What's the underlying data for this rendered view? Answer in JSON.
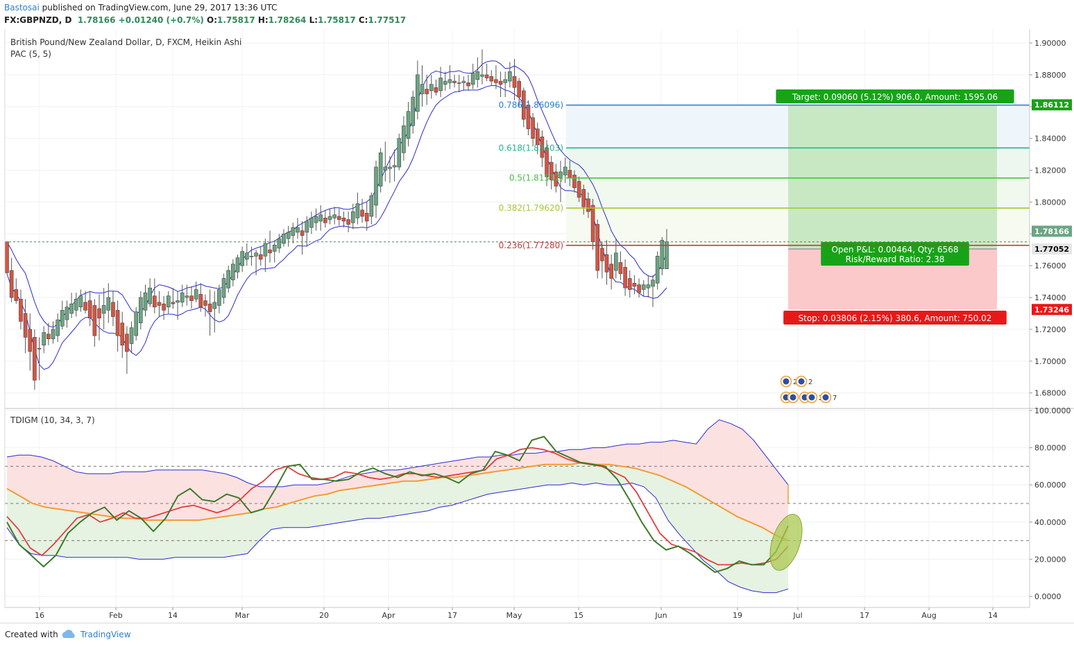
{
  "header": {
    "author": "Bastosai",
    "published_text": "published on TradingView.com, June 29, 2017 13:36 UTC",
    "symbol": "FX:GBPNZD, D",
    "last": "1.78166",
    "change": "+0.01240 (+0.7%)",
    "o_label": "O:",
    "o_value": "1.75817",
    "h_label": "H:",
    "h_value": "1.78264",
    "l_label": "L:",
    "l_value": "1.75817",
    "c_label": "C:",
    "c_value": "1.77517"
  },
  "footer": {
    "created_with": "Created with",
    "brand": "TradingView"
  },
  "colors": {
    "up": "#6ba583",
    "down": "#d75442",
    "band": "#2b2bd4",
    "fib_blue": "#2b7fd4",
    "fib_618": "#20b888",
    "fib_50": "#44c040",
    "fib_382": "#a4c832",
    "fib_236": "#c63c3c"
  },
  "chart_data": {
    "type": "candlestick",
    "title": "British Pound/New Zealand Dollar, D, FXCM, Heikin Ashi",
    "indicator_label": "PAC (5, 5)",
    "y_ticks": [
      "1.90000",
      "1.88000",
      "1.86000",
      "1.84000",
      "1.82000",
      "1.80000",
      "1.78000",
      "1.76000",
      "1.74000",
      "1.72000",
      "1.70000",
      "1.68000"
    ],
    "x_ticks": [
      "16",
      "Feb",
      "14",
      "Mar",
      "20",
      "Apr",
      "17",
      "May",
      "15",
      "Jun",
      "19",
      "Jul",
      "17",
      "Aug",
      "14"
    ],
    "price_tags": {
      "target": "1.86112",
      "current": "1.78166",
      "entry": "1.77052",
      "stop": "1.73246"
    },
    "fib_levels": [
      {
        "label": "0.786(1.86096)",
        "value": 1.86096
      },
      {
        "label": "0.618(1.83403)",
        "value": 1.83403
      },
      {
        "label": "0.5(1.81512)",
        "value": 1.81512
      },
      {
        "label": "0.382(1.79620)",
        "value": 1.7962
      },
      {
        "label": "0.236(1.77280)",
        "value": 1.7728
      }
    ],
    "position": {
      "target_label": "Target: 0.09060 (5.12%) 906.0, Amount: 1595.06",
      "stop_label": "Stop: 0.03806 (2.15%) 380.6, Amount: 750.02",
      "pnl_label": "Open P&L: 0.00464, Qty: 6568",
      "rr_label": "Risk/Reward Ratio: 2.38",
      "entry": 1.77052,
      "target": 1.86112,
      "stop": 1.73246
    },
    "event_counts": [
      "2",
      "2",
      "4",
      "2",
      "7"
    ],
    "candles": [
      [
        1.775,
        1.775,
        1.755,
        1.7555
      ],
      [
        1.757,
        1.765,
        1.737,
        1.74
      ],
      [
        1.745,
        1.752,
        1.736,
        1.738
      ],
      [
        1.739,
        1.745,
        1.72,
        1.725
      ],
      [
        1.73,
        1.739,
        1.705,
        1.715
      ],
      [
        1.72,
        1.73,
        1.694,
        1.706
      ],
      [
        1.715,
        1.72,
        1.682,
        1.688
      ],
      [
        1.708,
        1.715,
        1.688,
        1.708
      ],
      [
        1.71,
        1.722,
        1.705,
        1.718
      ],
      [
        1.717,
        1.724,
        1.71,
        1.714
      ],
      [
        1.714,
        1.725,
        1.711,
        1.72
      ],
      [
        1.716,
        1.73,
        1.712,
        1.726
      ],
      [
        1.722,
        1.738,
        1.72,
        1.732
      ],
      [
        1.726,
        1.738,
        1.721,
        1.734
      ],
      [
        1.73,
        1.743,
        1.727,
        1.736
      ],
      [
        1.732,
        1.743,
        1.728,
        1.739
      ],
      [
        1.734,
        1.745,
        1.731,
        1.741
      ],
      [
        1.737,
        1.744,
        1.73,
        1.732
      ],
      [
        1.738,
        1.744,
        1.722,
        1.727
      ],
      [
        1.735,
        1.739,
        1.709,
        1.716
      ],
      [
        1.733,
        1.742,
        1.713,
        1.727
      ],
      [
        1.73,
        1.746,
        1.72,
        1.735
      ],
      [
        1.732,
        1.749,
        1.724,
        1.74
      ],
      [
        1.737,
        1.744,
        1.722,
        1.728
      ],
      [
        1.732,
        1.738,
        1.706,
        1.716
      ],
      [
        1.724,
        1.731,
        1.702,
        1.71
      ],
      [
        1.717,
        1.722,
        1.692,
        1.706
      ],
      [
        1.711,
        1.725,
        1.705,
        1.721
      ],
      [
        1.716,
        1.734,
        1.713,
        1.731
      ],
      [
        1.724,
        1.744,
        1.72,
        1.74
      ],
      [
        1.732,
        1.748,
        1.728,
        1.743
      ],
      [
        1.736,
        1.752,
        1.734,
        1.746
      ],
      [
        1.741,
        1.752,
        1.73,
        1.734
      ],
      [
        1.737,
        1.744,
        1.728,
        1.735
      ],
      [
        1.736,
        1.741,
        1.726,
        1.732
      ],
      [
        1.734,
        1.744,
        1.73,
        1.741
      ],
      [
        1.737,
        1.746,
        1.733,
        1.736
      ],
      [
        1.737,
        1.744,
        1.726,
        1.738
      ],
      [
        1.737,
        1.748,
        1.734,
        1.743
      ],
      [
        1.74,
        1.748,
        1.735,
        1.741
      ],
      [
        1.741,
        1.747,
        1.733,
        1.738
      ],
      [
        1.739,
        1.75,
        1.737,
        1.745
      ],
      [
        1.742,
        1.749,
        1.731,
        1.734
      ],
      [
        1.738,
        1.742,
        1.728,
        1.735
      ],
      [
        1.736,
        1.745,
        1.716,
        1.731
      ],
      [
        1.733,
        1.744,
        1.718,
        1.737
      ],
      [
        1.735,
        1.748,
        1.73,
        1.745
      ],
      [
        1.74,
        1.755,
        1.736,
        1.752
      ],
      [
        1.746,
        1.76,
        1.743,
        1.757
      ],
      [
        1.751,
        1.764,
        1.747,
        1.761
      ],
      [
        1.756,
        1.767,
        1.752,
        1.765
      ],
      [
        1.76,
        1.772,
        1.756,
        1.769
      ],
      [
        1.764,
        1.774,
        1.76,
        1.768
      ],
      [
        1.766,
        1.772,
        1.76,
        1.766
      ],
      [
        1.766,
        1.77,
        1.754,
        1.768
      ],
      [
        1.767,
        1.772,
        1.76,
        1.764
      ],
      [
        1.766,
        1.777,
        1.756,
        1.774
      ],
      [
        1.77,
        1.782,
        1.762,
        1.768
      ],
      [
        1.769,
        1.776,
        1.762,
        1.773
      ],
      [
        1.771,
        1.78,
        1.768,
        1.777
      ],
      [
        1.774,
        1.783,
        1.772,
        1.78
      ],
      [
        1.777,
        1.785,
        1.772,
        1.781
      ],
      [
        1.779,
        1.787,
        1.774,
        1.784
      ],
      [
        1.781,
        1.79,
        1.777,
        1.784
      ],
      [
        1.782,
        1.788,
        1.767,
        1.779
      ],
      [
        1.781,
        1.791,
        1.772,
        1.788
      ],
      [
        1.784,
        1.794,
        1.78,
        1.79
      ],
      [
        1.787,
        1.796,
        1.782,
        1.791
      ],
      [
        1.788,
        1.798,
        1.782,
        1.792
      ],
      [
        1.79,
        1.795,
        1.784,
        1.787
      ],
      [
        1.789,
        1.796,
        1.786,
        1.791
      ],
      [
        1.79,
        1.797,
        1.786,
        1.792
      ],
      [
        1.791,
        1.796,
        1.785,
        1.789
      ],
      [
        1.79,
        1.794,
        1.784,
        1.788
      ],
      [
        1.789,
        1.794,
        1.781,
        1.786
      ],
      [
        1.787,
        1.799,
        1.783,
        1.794
      ],
      [
        1.79,
        1.806,
        1.786,
        1.799
      ],
      [
        1.795,
        1.802,
        1.787,
        1.791
      ],
      [
        1.793,
        1.8,
        1.782,
        1.788
      ],
      [
        1.791,
        1.806,
        1.786,
        1.804
      ],
      [
        1.798,
        1.826,
        1.79,
        1.822
      ],
      [
        1.81,
        1.834,
        1.806,
        1.831
      ],
      [
        1.82,
        1.838,
        1.813,
        1.822
      ],
      [
        1.821,
        1.829,
        1.812,
        1.822
      ],
      [
        1.822,
        1.833,
        1.813,
        1.823
      ],
      [
        1.822,
        1.843,
        1.82,
        1.84
      ],
      [
        1.831,
        1.854,
        1.826,
        1.848
      ],
      [
        1.84,
        1.863,
        1.835,
        1.857
      ],
      [
        1.848,
        1.87,
        1.843,
        1.866
      ],
      [
        1.857,
        1.889,
        1.852,
        1.88
      ],
      [
        1.868,
        1.886,
        1.86,
        1.874
      ],
      [
        1.871,
        1.88,
        1.861,
        1.868
      ],
      [
        1.87,
        1.88,
        1.865,
        1.874
      ],
      [
        1.872,
        1.877,
        1.867,
        1.869
      ],
      [
        1.87,
        1.885,
        1.866,
        1.878
      ],
      [
        1.874,
        1.882,
        1.87,
        1.876
      ],
      [
        1.875,
        1.886,
        1.871,
        1.877
      ],
      [
        1.876,
        1.88,
        1.872,
        1.875
      ],
      [
        1.875,
        1.88,
        1.869,
        1.875
      ],
      [
        1.875,
        1.879,
        1.87,
        1.876
      ],
      [
        1.875,
        1.88,
        1.87,
        1.873
      ],
      [
        1.874,
        1.887,
        1.871,
        1.881
      ],
      [
        1.877,
        1.891,
        1.872,
        1.882
      ],
      [
        1.879,
        1.896,
        1.874,
        1.88
      ],
      [
        1.88,
        1.887,
        1.876,
        1.878
      ],
      [
        1.879,
        1.883,
        1.873,
        1.876
      ],
      [
        1.877,
        1.886,
        1.871,
        1.875
      ],
      [
        1.876,
        1.882,
        1.866,
        1.874
      ],
      [
        1.875,
        1.882,
        1.866,
        1.877
      ],
      [
        1.876,
        1.888,
        1.872,
        1.882
      ],
      [
        1.879,
        1.89,
        1.864,
        1.872
      ],
      [
        1.876,
        1.878,
        1.86,
        1.866
      ],
      [
        1.87,
        1.872,
        1.847,
        1.852
      ],
      [
        1.861,
        1.864,
        1.842,
        1.846
      ],
      [
        1.853,
        1.856,
        1.835,
        1.84
      ],
      [
        1.846,
        1.85,
        1.83,
        1.836
      ],
      [
        1.841,
        1.845,
        1.822,
        1.828
      ],
      [
        1.834,
        1.839,
        1.81,
        1.816
      ],
      [
        1.825,
        1.829,
        1.808,
        1.814
      ],
      [
        1.819,
        1.824,
        1.806,
        1.81
      ],
      [
        1.815,
        1.826,
        1.8,
        1.819
      ],
      [
        1.817,
        1.828,
        1.812,
        1.822
      ],
      [
        1.82,
        1.826,
        1.81,
        1.815
      ],
      [
        1.817,
        1.82,
        1.806,
        1.809
      ],
      [
        1.813,
        1.816,
        1.8,
        1.803
      ],
      [
        1.808,
        1.811,
        1.792,
        1.797
      ],
      [
        1.802,
        1.806,
        1.79,
        1.794
      ],
      [
        1.798,
        1.802,
        1.77,
        1.775
      ],
      [
        1.786,
        1.789,
        1.752,
        1.757
      ],
      [
        1.771,
        1.775,
        1.752,
        1.763
      ],
      [
        1.767,
        1.776,
        1.748,
        1.756
      ],
      [
        1.761,
        1.767,
        1.745,
        1.752
      ],
      [
        1.757,
        1.777,
        1.752,
        1.768
      ],
      [
        1.762,
        1.769,
        1.751,
        1.755
      ],
      [
        1.759,
        1.764,
        1.741,
        1.746
      ],
      [
        1.752,
        1.757,
        1.74,
        1.745
      ],
      [
        1.749,
        1.754,
        1.742,
        1.747
      ],
      [
        1.748,
        1.752,
        1.74,
        1.743
      ],
      [
        1.745,
        1.751,
        1.741,
        1.748
      ],
      [
        1.746,
        1.754,
        1.74,
        1.748
      ],
      [
        1.747,
        1.754,
        1.734,
        1.751
      ],
      [
        1.749,
        1.769,
        1.745,
        1.766
      ],
      [
        1.758,
        1.778,
        1.754,
        1.776
      ],
      [
        1.758,
        1.783,
        1.758,
        1.775
      ]
    ],
    "tdi": {
      "title": "TDIGM (10, 34, 3, 7)",
      "y_ticks": [
        "100.0000",
        "80.0000",
        "60.0000",
        "40.0000",
        "20.0000",
        "0.0000"
      ],
      "levels": [
        70,
        50,
        30
      ],
      "upper_band": [
        75,
        76,
        76,
        75,
        73,
        70,
        67,
        66,
        66,
        66,
        67,
        67,
        67,
        68,
        68,
        68,
        68,
        68,
        67,
        66,
        64,
        61,
        59,
        59,
        59,
        60,
        60,
        60,
        61,
        63,
        65,
        66,
        67,
        68,
        68,
        69,
        70,
        71,
        72,
        73,
        74,
        75,
        75,
        76,
        76,
        77,
        77,
        78,
        78,
        79,
        79,
        80,
        80,
        81,
        82,
        82,
        83,
        83,
        84,
        83,
        82,
        90,
        95,
        93,
        90,
        84,
        76,
        68,
        60
      ],
      "lower_band": [
        37,
        28,
        23,
        22,
        22,
        21,
        21,
        21,
        21,
        21,
        21,
        20,
        20,
        20,
        21,
        21,
        21,
        21,
        21,
        22,
        23,
        30,
        36,
        37,
        37,
        37,
        38,
        39,
        40,
        41,
        42,
        42,
        43,
        44,
        45,
        46,
        48,
        49,
        51,
        53,
        55,
        56,
        57,
        58,
        59,
        60,
        60,
        61,
        60,
        61,
        60,
        60,
        61,
        59,
        53,
        41,
        33,
        26,
        19,
        14,
        8,
        5,
        3,
        2,
        2,
        4
      ],
      "signal_slow": [
        58,
        54,
        50,
        48,
        47,
        46,
        45,
        44,
        43,
        42,
        42,
        41,
        41,
        41,
        41,
        41,
        42,
        43,
        44,
        45,
        47,
        48,
        50,
        52,
        54,
        55,
        57,
        58,
        59,
        60,
        61,
        62,
        62,
        63,
        64,
        64,
        65,
        66,
        67,
        68,
        69,
        70,
        71,
        71,
        71,
        72,
        71,
        71,
        70,
        69,
        67,
        65,
        62,
        59,
        55,
        51,
        47,
        43,
        40,
        37,
        33,
        30
      ],
      "rsi_fast": [
        43,
        36,
        26,
        22,
        28,
        35,
        42,
        44,
        40,
        42,
        45,
        42,
        42,
        44,
        46,
        48,
        49,
        47,
        45,
        47,
        52,
        58,
        62,
        68,
        70,
        66,
        64,
        63,
        64,
        67,
        66,
        64,
        63,
        64,
        66,
        66,
        65,
        64,
        65,
        66,
        67,
        68,
        74,
        76,
        79,
        80,
        79,
        77,
        74,
        72,
        71,
        70,
        67,
        64,
        56,
        45,
        34,
        28,
        26,
        24,
        20,
        17,
        17,
        18,
        17,
        18,
        20,
        27
      ],
      "price_line": [
        40,
        28,
        22,
        16,
        22,
        34,
        40,
        45,
        48,
        41,
        46,
        42,
        35,
        42,
        54,
        58,
        52,
        51,
        55,
        53,
        45,
        47,
        58,
        70,
        71,
        63,
        63,
        62,
        63,
        67,
        69,
        66,
        64,
        67,
        65,
        66,
        64,
        61,
        66,
        68,
        78,
        76,
        73,
        84,
        86,
        78,
        75,
        72,
        71,
        70,
        63,
        52,
        40,
        30,
        25,
        27,
        23,
        18,
        13,
        15,
        19,
        17,
        17,
        24,
        38
      ]
    }
  }
}
